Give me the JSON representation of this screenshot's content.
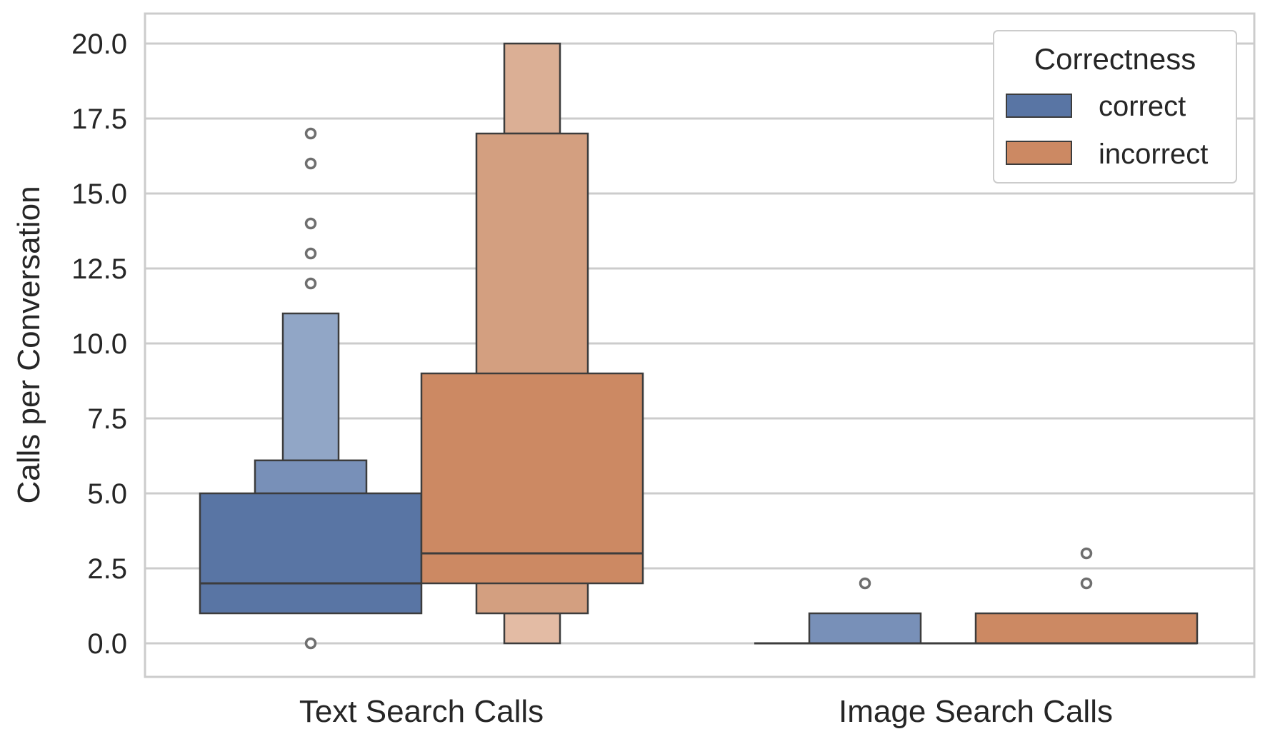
{
  "chart_data": {
    "type": "boxen",
    "title": "",
    "xlabel": "",
    "ylabel": "Calls per Conversation",
    "ylim": [
      -1,
      21
    ],
    "y_ticks": [
      0,
      2.5,
      5,
      7.5,
      10,
      12.5,
      15,
      17.5,
      20
    ],
    "y_tick_labels": [
      "0.0",
      "2.5",
      "5.0",
      "7.5",
      "10.0",
      "12.5",
      "15.0",
      "17.5",
      "20.0"
    ],
    "grid": "horizontal",
    "legend": {
      "title": "Correctness",
      "position": "top-right",
      "entries": [
        {
          "label": "correct",
          "color": "#5975a4"
        },
        {
          "label": "incorrect",
          "color": "#cc8963"
        }
      ]
    },
    "categories": [
      "Text Search Calls",
      "Image Search Calls"
    ],
    "series": [
      {
        "name": "correct",
        "color": "#5975a4",
        "groups": [
          {
            "category": "Text Search Calls",
            "boxes": [
              {
                "level": 1,
                "low": 1,
                "high": 5,
                "color": "#5975a4"
              },
              {
                "level": 2,
                "low": 5,
                "high": 6.1,
                "color": "#7890b8"
              },
              {
                "level": 3,
                "low": 6.1,
                "high": 11,
                "color": "#91a6c6"
              }
            ],
            "median": 2,
            "outliers": [
              0,
              12,
              13,
              14,
              16,
              17
            ]
          },
          {
            "category": "Image Search Calls",
            "boxes": [
              {
                "level": 1,
                "low": 0,
                "high": 0,
                "color": "#5975a4"
              },
              {
                "level": 2,
                "low": 0,
                "high": 1,
                "color": "#7890b8"
              }
            ],
            "median": 0,
            "outliers": [
              2
            ]
          }
        ]
      },
      {
        "name": "incorrect",
        "color": "#cc8963",
        "groups": [
          {
            "category": "Text Search Calls",
            "boxes": [
              {
                "level": 1,
                "low": 2,
                "high": 9,
                "color": "#cc8963"
              },
              {
                "level": 2,
                "low": 1,
                "high": 17,
                "color": "#d39f80"
              },
              {
                "level": 3,
                "low": 0,
                "high": 20,
                "color": "#dbaf95"
              }
            ],
            "box_segments": [
              {
                "level": 3,
                "low": 0,
                "high": 1,
                "color": "#e3bba4"
              },
              {
                "level": 3,
                "low": 17,
                "high": 20,
                "color": "#dbaf95"
              }
            ],
            "median": 3,
            "outliers": []
          },
          {
            "category": "Image Search Calls",
            "boxes": [
              {
                "level": 1,
                "low": 0,
                "high": 1,
                "color": "#cc8963"
              }
            ],
            "median": 0,
            "outliers": [
              2,
              3
            ]
          }
        ]
      }
    ]
  }
}
